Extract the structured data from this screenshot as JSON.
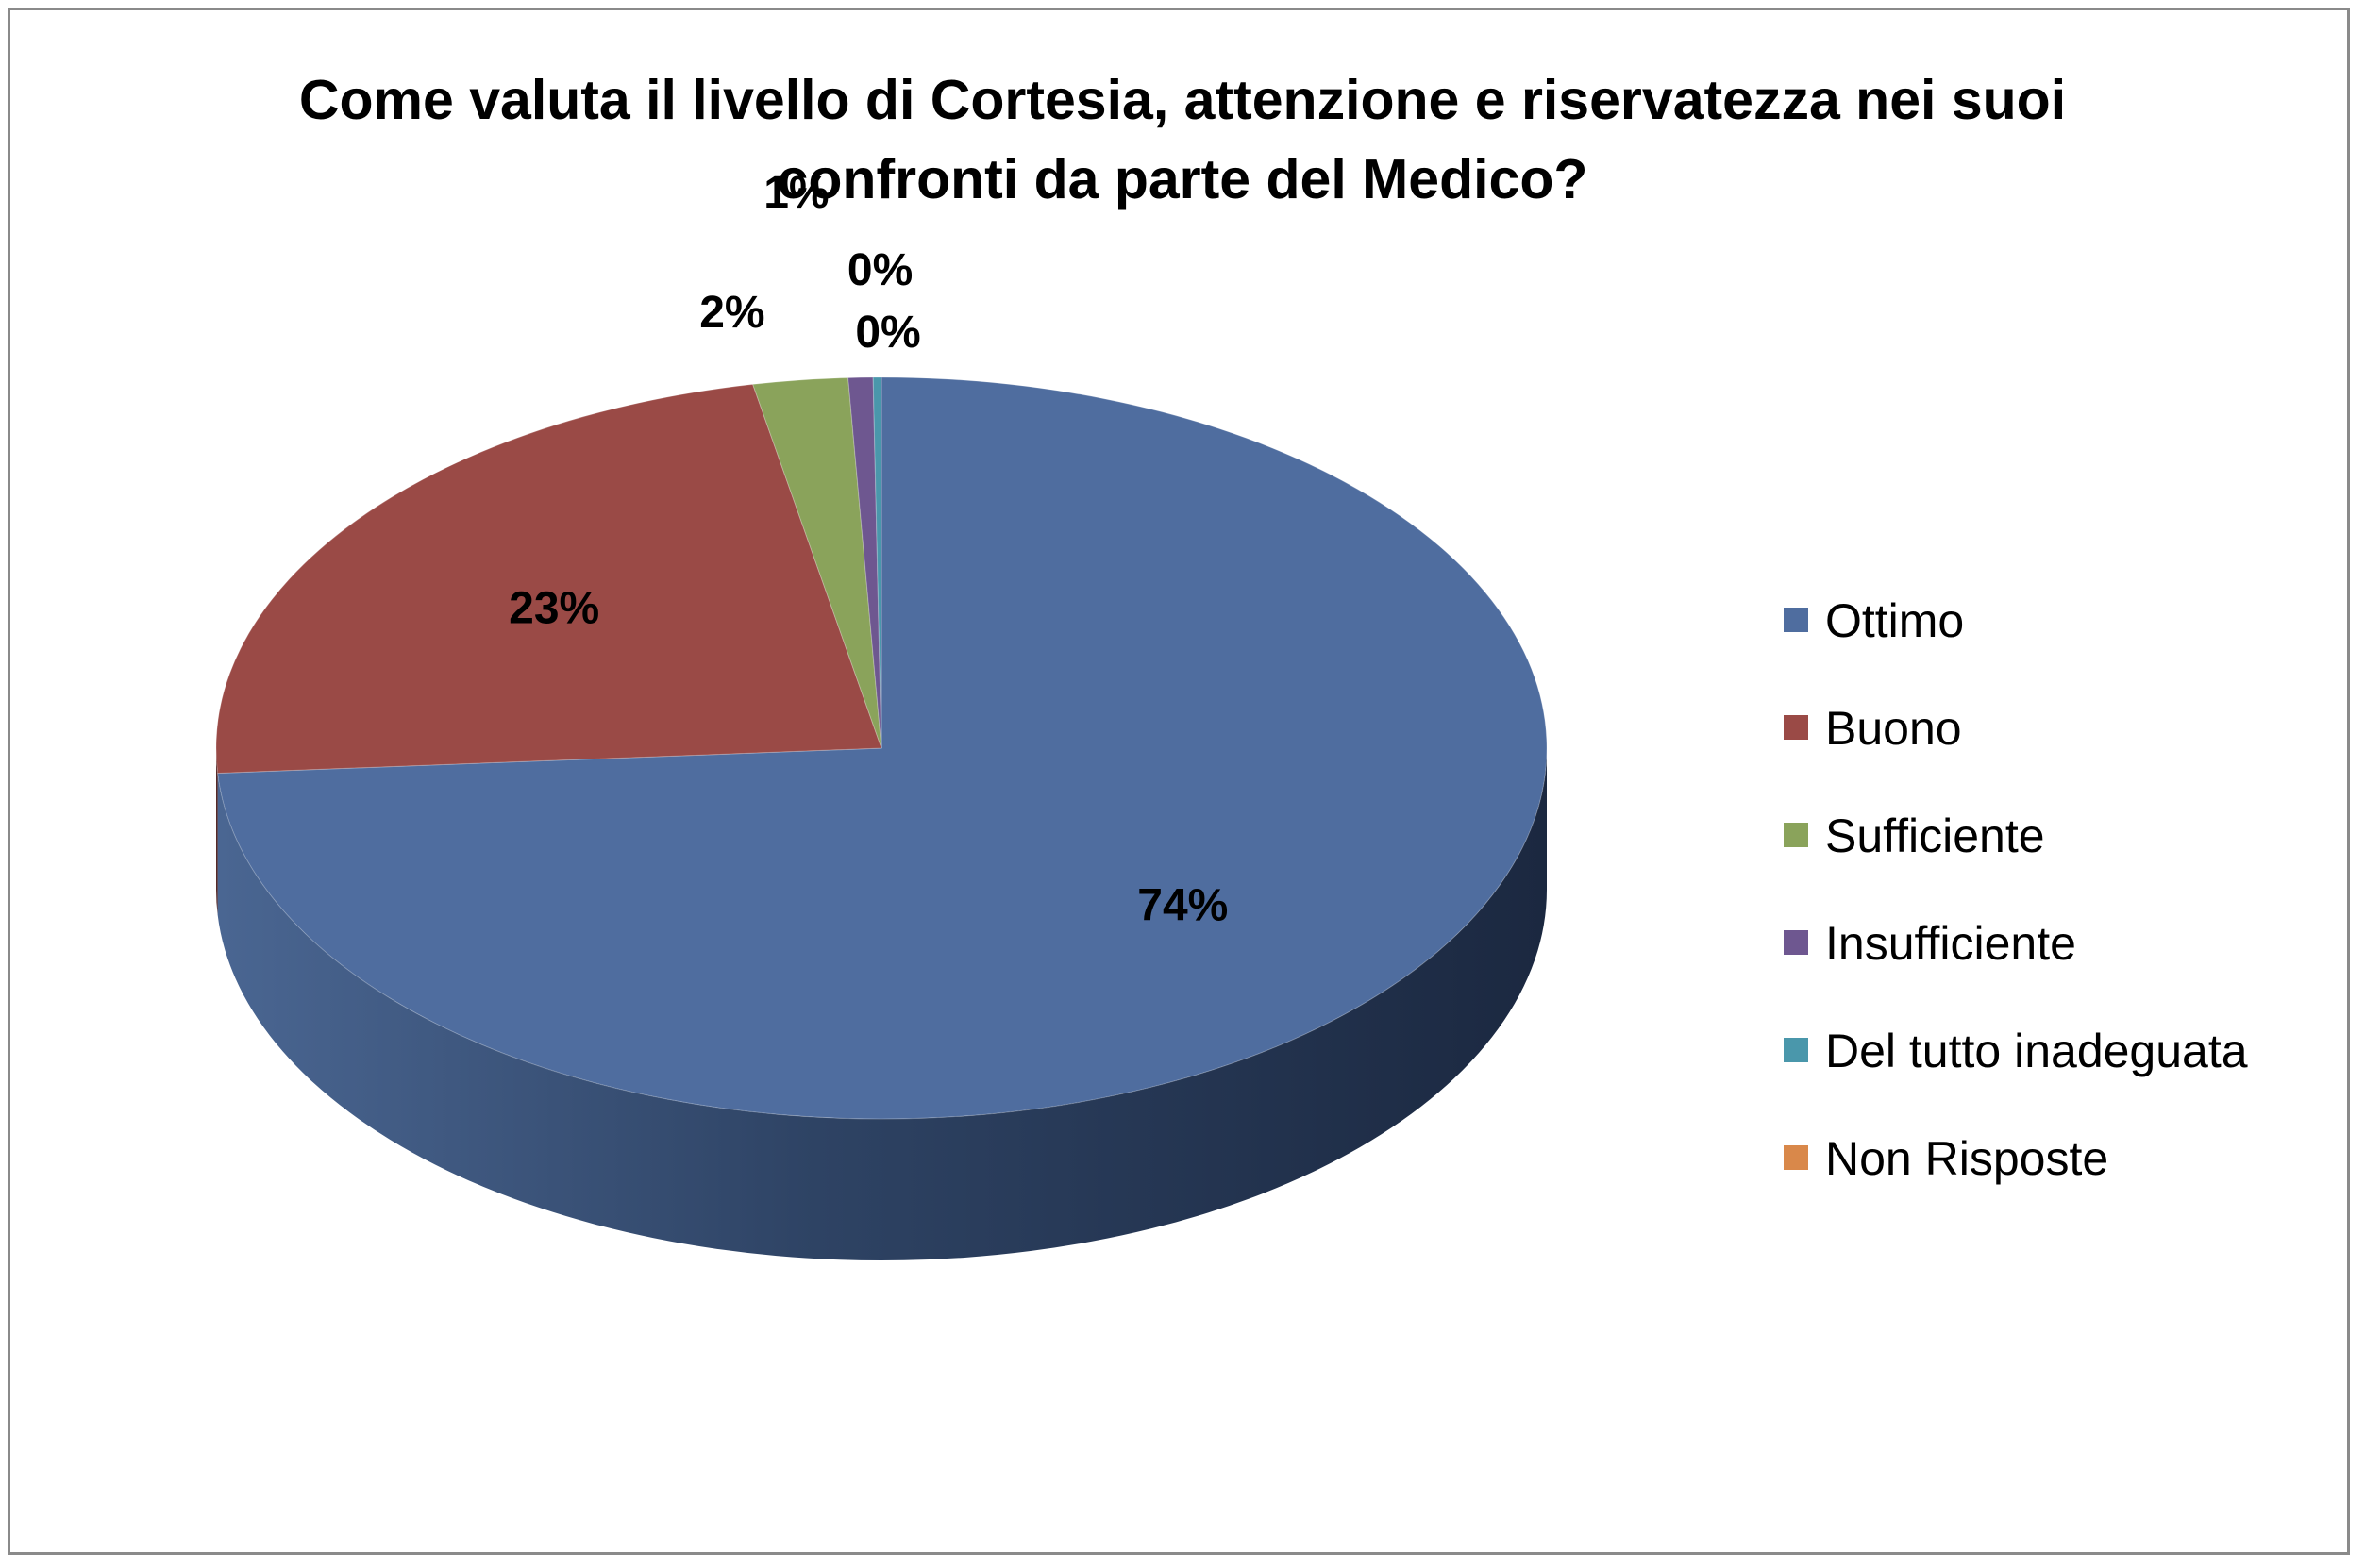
{
  "chart_data": {
    "type": "pie",
    "title": "Come valuta il livello di Cortesia, attenzione e riservatezza nei suoi confronti da parte del Medico?",
    "title_lines": [
      "Come valuta il livello di Cortesia, attenzione e riservatezza nei suoi",
      "confronti da parte del Medico?"
    ],
    "categories": [
      "Ottimo",
      "Buono",
      "Sufficiente",
      "Insufficiente",
      "Del tutto inadeguata",
      "Non Risposte"
    ],
    "values": [
      74.0,
      23.0,
      2.3,
      0.6,
      0.2,
      0.0
    ],
    "data_labels": [
      "74%",
      "23%",
      "2%",
      "1%",
      "0%",
      "0%"
    ],
    "colors": [
      "#4F6D9F",
      "#9A4A46",
      "#8AA35B",
      "#6E5790",
      "#4A97AB",
      "#D9884A"
    ],
    "legend_position": "right",
    "three_d": true
  }
}
